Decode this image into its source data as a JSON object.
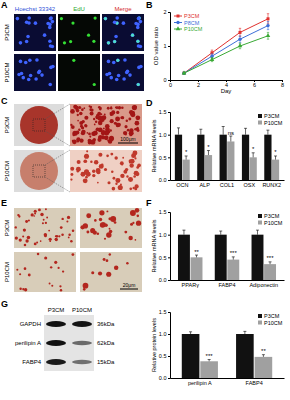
{
  "panel_labels": [
    "A",
    "B",
    "C",
    "D",
    "E",
    "F",
    "G"
  ],
  "panels": {
    "A": {
      "columns": [
        "Hoechst 33342",
        "EdU",
        "Merge"
      ],
      "rows": [
        "P3CM",
        "P10CM"
      ]
    },
    "C": {
      "rows": [
        "P3CM",
        "P10CM"
      ],
      "scale_bar": "100μm"
    },
    "E": {
      "rows": [
        "P3CM",
        "P10CM"
      ],
      "scale_bar": "20μm"
    },
    "G": {
      "columns": [
        "P3CM",
        "P10CM"
      ],
      "bands": [
        "GAPDH",
        "perilipin A",
        "FABP4"
      ],
      "sizes": [
        "36kDa",
        "62kDa",
        "15kDa"
      ]
    }
  },
  "chart_data": [
    {
      "type": "line",
      "x_label": "Day",
      "y_label": "OD value ratio",
      "x": [
        1,
        3,
        5,
        7
      ],
      "series": [
        {
          "name": "P3CM",
          "color": "#e0312e",
          "marker": "square",
          "values": [
            0.2,
            0.8,
            1.4,
            1.8
          ],
          "errors": [
            0.03,
            0.08,
            0.12,
            0.15
          ]
        },
        {
          "name": "P8CM",
          "color": "#3d6fd8",
          "marker": "circle",
          "values": [
            0.2,
            0.7,
            1.2,
            1.6
          ],
          "errors": [
            0.03,
            0.07,
            0.1,
            0.12
          ]
        },
        {
          "name": "P10CM",
          "color": "#3aaa35",
          "marker": "triangle",
          "values": [
            0.2,
            0.6,
            1.0,
            1.3
          ],
          "errors": [
            0.03,
            0.06,
            0.08,
            0.1
          ]
        }
      ],
      "xlim": [
        0,
        8
      ],
      "xticks": [
        0,
        2,
        4,
        6,
        8
      ],
      "ylim": [
        0,
        2
      ],
      "yticks": [
        0,
        1,
        2
      ],
      "legend": "top-left"
    },
    {
      "type": "bar",
      "y_label": "Relative mRNA levels",
      "categories": [
        "OCN",
        "ALP",
        "COL1",
        "OSX",
        "RUNX2"
      ],
      "series": [
        {
          "name": "P3CM",
          "color": "#111111",
          "values": [
            1,
            1,
            1,
            1,
            1
          ],
          "errors": [
            0.15,
            0.12,
            0.18,
            0.14,
            0.1
          ]
        },
        {
          "name": "P10CM",
          "color": "#a0a0a0",
          "values": [
            0.45,
            0.55,
            0.85,
            0.5,
            0.45
          ],
          "errors": [
            0.08,
            0.1,
            0.12,
            0.1,
            0.08
          ]
        }
      ],
      "annotations": [
        "*",
        "*",
        "ns",
        "*",
        "*"
      ],
      "ylim": [
        0,
        1.5
      ],
      "yticks": [
        {
          "value": 0,
          "label": "0.0"
        },
        0.5,
        {
          "value": 1,
          "label": "1.0"
        },
        1.5
      ],
      "legend": "top-right"
    },
    {
      "type": "bar",
      "y_label": "Relative mRNA levels",
      "categories": [
        "PPARγ",
        "FABP4",
        "Adiponectin"
      ],
      "series": [
        {
          "name": "P3CM",
          "color": "#111111",
          "values": [
            1,
            1,
            1
          ],
          "errors": [
            0.1,
            0.08,
            0.1
          ]
        },
        {
          "name": "P10CM",
          "color": "#a0a0a0",
          "values": [
            0.5,
            0.45,
            0.35
          ],
          "errors": [
            0.05,
            0.06,
            0.05
          ]
        }
      ],
      "annotations": [
        "**",
        "***",
        "***"
      ],
      "ylim": [
        0,
        1.5
      ],
      "yticks": [
        {
          "value": 0,
          "label": "0.0"
        },
        0.5,
        {
          "value": 1,
          "label": "1.0"
        },
        1.5
      ],
      "legend": "top-right"
    },
    {
      "type": "bar",
      "y_label": "Relative protein levels",
      "categories": [
        "perilipin A",
        "FABP4"
      ],
      "series": [
        {
          "name": "P3CM",
          "color": "#111111",
          "values": [
            1,
            1
          ],
          "errors": [
            0.05,
            0.06
          ]
        },
        {
          "name": "P10CM",
          "color": "#a0a0a0",
          "values": [
            0.38,
            0.48
          ],
          "errors": [
            0.04,
            0.05
          ]
        }
      ],
      "annotations": [
        "***",
        "**"
      ],
      "ylim": [
        0,
        1.5
      ],
      "yticks": [
        {
          "value": 0,
          "label": "0.0"
        },
        0.5,
        {
          "value": 1,
          "label": "1.0"
        },
        1.5
      ],
      "legend": "top-right"
    }
  ]
}
